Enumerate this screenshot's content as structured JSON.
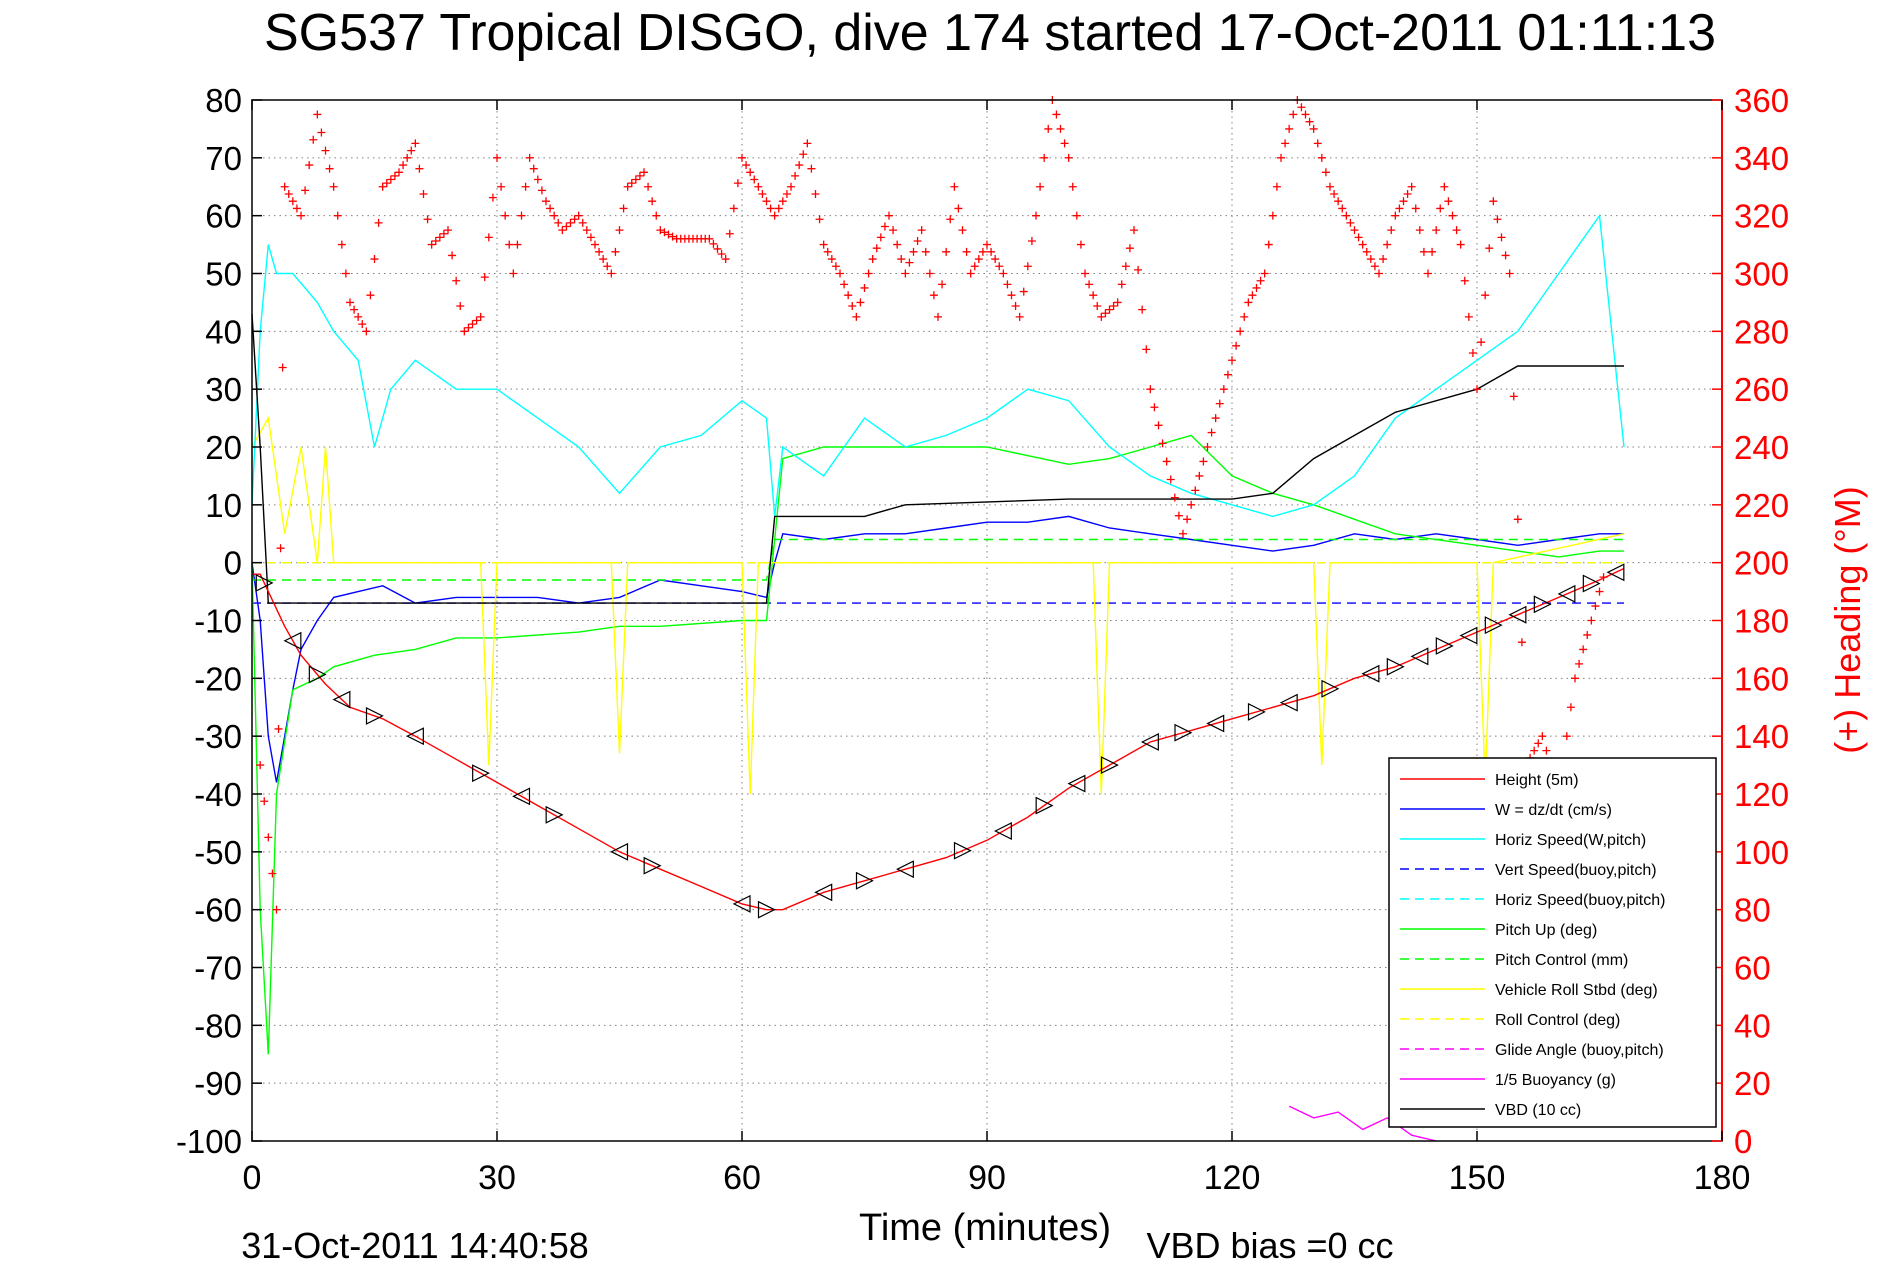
{
  "chart_data": {
    "type": "line",
    "title": "SG537 Tropical DISGO, dive 174 started 17-Oct-2011 01:11:13",
    "xlabel": "Time (minutes)",
    "ylabel_right": "(+) Heading (°M)",
    "footer_left": "31-Oct-2011 14:40:58",
    "footer_right": "VBD bias =0 cc",
    "xlim": [
      0,
      180
    ],
    "ylim": [
      -100,
      80
    ],
    "y2lim": [
      0,
      360
    ],
    "x_ticks": [
      0,
      30,
      60,
      90,
      120,
      150,
      180
    ],
    "x_tick_labels": [
      "0",
      "30",
      "60",
      "90",
      "120",
      "150",
      "180"
    ],
    "y_ticks": [
      80,
      70,
      60,
      50,
      40,
      30,
      20,
      10,
      0,
      -10,
      -20,
      -30,
      -40,
      -50,
      -60,
      -70,
      -80,
      -90,
      -100
    ],
    "y_tick_labels": [
      "80",
      "70",
      "60",
      "50",
      "40",
      "30",
      "20",
      "10",
      "0",
      "-10",
      "-20",
      "-30",
      "-40",
      "-50",
      "-60",
      "-70",
      "-80",
      "-90",
      "-100"
    ],
    "y2_ticks": [
      360,
      340,
      320,
      300,
      280,
      260,
      240,
      220,
      200,
      180,
      160,
      140,
      120,
      100,
      80,
      60,
      40,
      20,
      0
    ],
    "y2_tick_labels": [
      "360",
      "340",
      "320",
      "300",
      "280",
      "260",
      "240",
      "220",
      "200",
      "180",
      "160",
      "140",
      "120",
      "100",
      "80",
      "60",
      "40",
      "20",
      "0"
    ],
    "grid": true,
    "legend_position": "bottom-right",
    "colors": {
      "red": "#ff0000",
      "blue": "#0000ff",
      "cyan": "#00ffff",
      "green": "#00ff00",
      "yellow": "#ffff00",
      "magenta": "#ff00ff",
      "black": "#000000",
      "grid": "#808080"
    },
    "series": [
      {
        "name": "Height (5m)",
        "color": "#ff0000",
        "style": "solid",
        "x": [
          0,
          1,
          2,
          4,
          6,
          9,
          12,
          16,
          20,
          25,
          30,
          35,
          40,
          45,
          50,
          55,
          60,
          63,
          65,
          70,
          75,
          80,
          85,
          90,
          95,
          100,
          105,
          110,
          115,
          120,
          125,
          130,
          135,
          140,
          145,
          150,
          155,
          160,
          165,
          168
        ],
        "y": [
          -2,
          -2,
          -5,
          -11,
          -16,
          -21,
          -25,
          -27,
          -30,
          -34,
          -38,
          -42,
          -46,
          -50,
          -53,
          -56,
          -59,
          -60,
          -60,
          -57,
          -55,
          -53,
          -51,
          -48,
          -44,
          -39,
          -35,
          -31,
          -29,
          -27,
          -25,
          -23,
          -20,
          -18,
          -15,
          -12,
          -9,
          -6,
          -3,
          -1
        ]
      },
      {
        "name": "W = dz/dt (cm/s)",
        "color": "#0000ff",
        "style": "solid",
        "x": [
          0,
          1,
          2,
          3,
          4,
          5,
          6,
          8,
          10,
          13,
          16,
          20,
          25,
          30,
          35,
          40,
          45,
          50,
          55,
          60,
          63,
          64,
          65,
          70,
          75,
          80,
          85,
          90,
          95,
          100,
          105,
          110,
          115,
          120,
          125,
          130,
          135,
          140,
          145,
          150,
          155,
          160,
          165,
          168
        ],
        "y": [
          0,
          -10,
          -30,
          -38,
          -30,
          -22,
          -15,
          -10,
          -6,
          -5,
          -4,
          -7,
          -6,
          -6,
          -6,
          -7,
          -6,
          -3,
          -4,
          -5,
          -6,
          0,
          5,
          4,
          5,
          5,
          6,
          7,
          7,
          8,
          6,
          5,
          4,
          3,
          2,
          3,
          5,
          4,
          5,
          4,
          3,
          4,
          5,
          5
        ]
      },
      {
        "name": "Horiz Speed(W,pitch)",
        "color": "#00ffff",
        "style": "solid",
        "x": [
          0,
          1,
          2,
          3,
          5,
          8,
          10,
          13,
          15,
          17,
          20,
          25,
          30,
          35,
          40,
          45,
          50,
          55,
          60,
          63,
          64,
          65,
          70,
          75,
          80,
          85,
          90,
          95,
          100,
          105,
          110,
          115,
          120,
          125,
          130,
          135,
          140,
          145,
          150,
          155,
          160,
          165,
          168
        ],
        "y": [
          10,
          40,
          55,
          50,
          50,
          45,
          40,
          35,
          20,
          30,
          35,
          30,
          30,
          25,
          20,
          12,
          20,
          22,
          28,
          25,
          8,
          20,
          15,
          25,
          20,
          22,
          25,
          30,
          28,
          20,
          15,
          12,
          10,
          8,
          10,
          15,
          25,
          30,
          35,
          40,
          50,
          60,
          20
        ]
      },
      {
        "name": "Vert Speed(buoy,pitch)",
        "color": "#0000ff",
        "style": "dashed",
        "x": [
          0,
          168
        ],
        "y": [
          -7,
          -7
        ]
      },
      {
        "name": "Horiz Speed(buoy,pitch)",
        "color": "#00ffff",
        "style": "dashed",
        "x": [
          0,
          168
        ],
        "y": [
          0,
          0
        ]
      },
      {
        "name": "Pitch Up (deg)",
        "color": "#00ff00",
        "style": "solid",
        "x": [
          0,
          1,
          2,
          3,
          5,
          8,
          10,
          15,
          20,
          25,
          30,
          40,
          45,
          50,
          60,
          63,
          65,
          70,
          80,
          90,
          100,
          105,
          110,
          115,
          120,
          125,
          130,
          140,
          150,
          155,
          160,
          165,
          168
        ],
        "y": [
          0,
          -60,
          -85,
          -40,
          -22,
          -20,
          -18,
          -16,
          -15,
          -13,
          -13,
          -12,
          -11,
          -11,
          -10,
          -10,
          18,
          20,
          20,
          20,
          17,
          18,
          20,
          22,
          15,
          12,
          10,
          5,
          3,
          2,
          1,
          2,
          2
        ]
      },
      {
        "name": "Pitch Control (mm)",
        "color": "#00ff00",
        "style": "dashed",
        "x": [
          0,
          3,
          63,
          64,
          168
        ],
        "y": [
          -3,
          -3,
          -3,
          4,
          4
        ]
      },
      {
        "name": "Vehicle Roll Stbd (deg)",
        "color": "#ffff00",
        "style": "solid",
        "x": [
          0,
          2,
          4,
          6,
          8,
          9,
          10,
          20,
          28,
          29,
          30,
          40,
          44,
          45,
          46,
          60,
          61,
          62,
          70,
          100,
          103,
          104,
          105,
          130,
          131,
          132,
          150,
          151,
          152,
          168
        ],
        "y": [
          20,
          25,
          5,
          20,
          0,
          20,
          0,
          0,
          0,
          -35,
          0,
          0,
          0,
          -33,
          0,
          0,
          -40,
          0,
          0,
          0,
          0,
          -40,
          0,
          0,
          -35,
          0,
          0,
          -38,
          0,
          5
        ]
      },
      {
        "name": "Roll Control (deg)",
        "color": "#ffff00",
        "style": "dashed",
        "x": [
          0,
          168
        ],
        "y": [
          0,
          0
        ]
      },
      {
        "name": "Glide Angle (buoy,pitch)",
        "color": "#ff00ff",
        "style": "dashed",
        "x": [
          0,
          168
        ],
        "y": [
          0,
          0
        ]
      },
      {
        "name": "1/5 Buoyancy (g)",
        "color": "#ff00ff",
        "style": "solid",
        "x": [
          127,
          130,
          133,
          136,
          139,
          142,
          145
        ],
        "y": [
          -94,
          -96,
          -95,
          -98,
          -96,
          -99,
          -100
        ]
      },
      {
        "name": "VBD (10 cc)",
        "color": "#000000",
        "style": "solid",
        "x": [
          0,
          1,
          2,
          62,
          63,
          64,
          75,
          80,
          100,
          120,
          125,
          130,
          135,
          140,
          150,
          155,
          168
        ],
        "y": [
          43,
          20,
          -7,
          -7,
          -7,
          8,
          8,
          10,
          11,
          11,
          12,
          18,
          22,
          26,
          30,
          34,
          34
        ]
      }
    ],
    "heading": {
      "name": "(+) Heading (°M)",
      "axis": "right",
      "marker": "+",
      "color": "#ff0000",
      "x": [
        1,
        3,
        4,
        6,
        8,
        10,
        12,
        14,
        16,
        18,
        20,
        22,
        24,
        26,
        28,
        30,
        32,
        34,
        36,
        38,
        40,
        42,
        44,
        46,
        48,
        50,
        52,
        54,
        56,
        58,
        60,
        62,
        64,
        66,
        68,
        70,
        72,
        74,
        76,
        78,
        80,
        82,
        84,
        86,
        88,
        90,
        92,
        94,
        96,
        98,
        100,
        102,
        104,
        106,
        108,
        110,
        112,
        114,
        116,
        118,
        120,
        122,
        124,
        126,
        128,
        130,
        132,
        134,
        136,
        138,
        140,
        142,
        144,
        146,
        148,
        150,
        152,
        154,
        156,
        158,
        160,
        162,
        164,
        166
      ],
      "y": [
        130,
        80,
        330,
        320,
        355,
        330,
        290,
        280,
        330,
        335,
        345,
        310,
        315,
        280,
        285,
        340,
        300,
        340,
        325,
        315,
        320,
        310,
        300,
        330,
        335,
        315,
        312,
        312,
        312,
        305,
        340,
        330,
        320,
        330,
        345,
        310,
        300,
        285,
        305,
        320,
        300,
        315,
        285,
        330,
        300,
        310,
        300,
        285,
        320,
        360,
        340,
        300,
        285,
        290,
        315,
        260,
        235,
        210,
        230,
        250,
        270,
        290,
        300,
        340,
        360,
        350,
        330,
        320,
        310,
        300,
        320,
        330,
        300,
        330,
        310,
        260,
        325,
        300,
        130,
        140,
        120,
        160,
        180,
        200
      ]
    }
  },
  "legend": {
    "entries": [
      {
        "label": "Height (5m)",
        "color": "#ff0000",
        "dash": false
      },
      {
        "label": "W = dz/dt (cm/s)",
        "color": "#0000ff",
        "dash": false
      },
      {
        "label": "Horiz Speed(W,pitch)",
        "color": "#00ffff",
        "dash": false
      },
      {
        "label": "Vert Speed(buoy,pitch)",
        "color": "#0000ff",
        "dash": true
      },
      {
        "label": "Horiz Speed(buoy,pitch)",
        "color": "#00ffff",
        "dash": true
      },
      {
        "label": "Pitch Up (deg)",
        "color": "#00ff00",
        "dash": false
      },
      {
        "label": "Pitch Control (mm)",
        "color": "#00ff00",
        "dash": true
      },
      {
        "label": "Vehicle Roll Stbd (deg)",
        "color": "#ffff00",
        "dash": false
      },
      {
        "label": "Roll Control (deg)",
        "color": "#ffff00",
        "dash": true
      },
      {
        "label": "Glide Angle (buoy,pitch)",
        "color": "#ff00ff",
        "dash": true
      },
      {
        "label": "1/5 Buoyancy (g)",
        "color": "#ff00ff",
        "dash": false
      },
      {
        "label": "VBD (10 cc)",
        "color": "#000000",
        "dash": false
      }
    ]
  }
}
